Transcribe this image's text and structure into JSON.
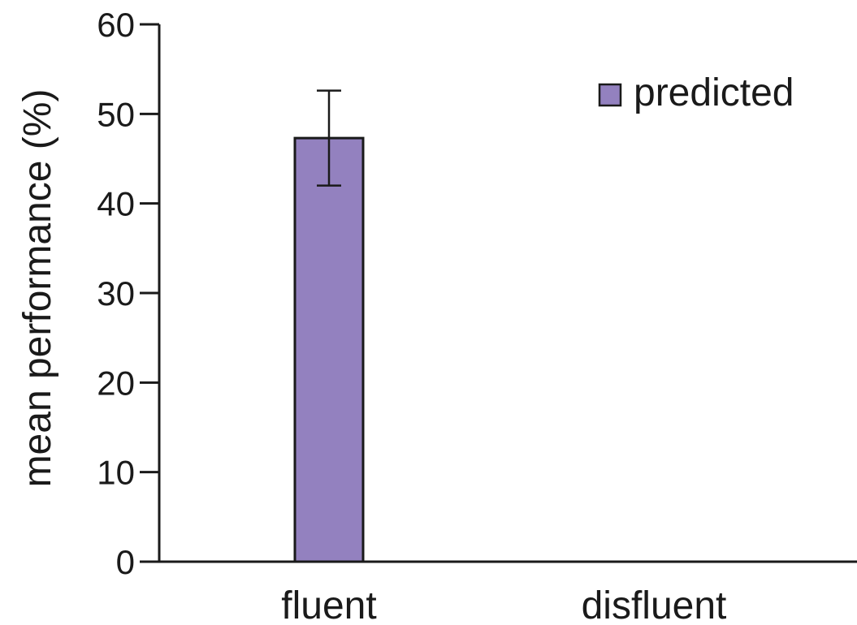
{
  "chart_data": {
    "type": "bar",
    "title": "",
    "xlabel": "",
    "ylabel": "mean performance (%)",
    "ylim": [
      0,
      60
    ],
    "yticks": [
      0,
      10,
      20,
      30,
      40,
      50,
      60
    ],
    "grid": false,
    "legend_position": "top-right",
    "categories": [
      "fluent",
      "disfluent"
    ],
    "series": [
      {
        "name": "predicted",
        "color": "#9381bf",
        "values": [
          47.3,
          null
        ],
        "error": [
          5.3,
          null
        ]
      }
    ]
  }
}
